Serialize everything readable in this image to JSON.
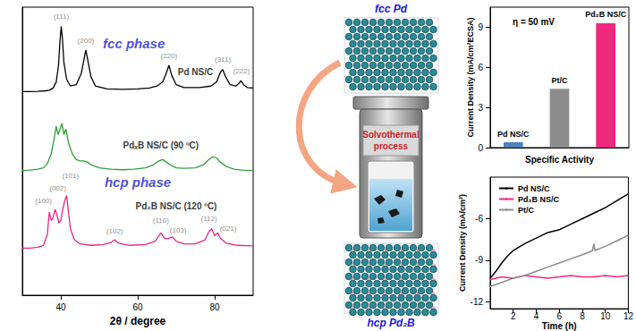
{
  "chart_data": [
    {
      "type": "line",
      "x_label": "2θ / degree",
      "xlim": [
        30,
        90
      ],
      "xticks": [
        40,
        60,
        80
      ],
      "ylim": [
        0,
        104
      ],
      "tick_labels": "x",
      "series": [
        {
          "color": "#000000",
          "x": [
            30,
            32,
            34,
            36,
            37,
            38,
            38.8,
            39.4,
            39.8,
            40.1,
            40.4,
            40.8,
            41.5,
            42.5,
            44,
            45.3,
            46,
            46.5,
            47,
            47.8,
            49,
            52,
            56,
            60,
            63,
            65,
            66.5,
            67.5,
            68.1,
            68.8,
            70,
            72,
            76,
            79,
            80.5,
            81.5,
            82.1,
            82.8,
            84,
            85.5,
            86.3,
            86.8,
            87.5,
            88.5,
            90
          ],
          "values": [
            73.5,
            73.5,
            73.6,
            73.8,
            74,
            74.8,
            77,
            83,
            92,
            97,
            93,
            84,
            78,
            75.5,
            76,
            80,
            85,
            88.5,
            85,
            79,
            75.5,
            74.5,
            74.3,
            74.5,
            74.8,
            75.5,
            77,
            80.5,
            83,
            79.5,
            76,
            75,
            75,
            75.5,
            77,
            80.5,
            81.5,
            79,
            76,
            75.5,
            76.5,
            77.5,
            76,
            75,
            74.8
          ]
        },
        {
          "color": "#2e9e3a",
          "x": [
            30,
            32,
            34,
            35.5,
            36.5,
            37.5,
            38.2,
            38.8,
            39.3,
            39.8,
            40.3,
            40.8,
            41.3,
            42,
            43,
            44,
            45,
            46,
            47,
            48,
            50,
            53,
            56,
            59,
            62,
            64,
            65.5,
            66.5,
            67.5,
            68.5,
            70,
            72,
            75,
            77,
            78.5,
            79.5,
            80.5,
            81.5,
            83,
            85,
            87,
            90
          ],
          "values": [
            45,
            45.2,
            45.5,
            46,
            47.5,
            51,
            56,
            61,
            58,
            60,
            62,
            58,
            60,
            55,
            51,
            49,
            48.5,
            48.5,
            48,
            47,
            46,
            45.5,
            45.3,
            45.5,
            46,
            47,
            48.5,
            49,
            48,
            47,
            46,
            45.8,
            46,
            47,
            49,
            50,
            49.5,
            48,
            46.5,
            45.5,
            45.2,
            45
          ]
        },
        {
          "color": "#e8267f",
          "x": [
            30,
            32,
            34,
            35.5,
            36.5,
            37,
            37.5,
            38,
            38.5,
            39,
            39.5,
            40,
            40.5,
            41,
            41.5,
            42,
            42.5,
            43.5,
            45,
            48,
            51,
            53,
            54,
            55,
            58,
            62,
            64.5,
            66,
            67,
            68,
            69,
            70,
            72,
            75,
            77.5,
            78.5,
            79.2,
            80,
            80.8,
            81.5,
            83,
            86,
            90
          ],
          "values": [
            17,
            17,
            17.3,
            18,
            22,
            30,
            27,
            28,
            31,
            29,
            26,
            27,
            31,
            34,
            36,
            30,
            24,
            20,
            18.5,
            18,
            18.3,
            19,
            20,
            18.8,
            18,
            18.3,
            19.5,
            22.5,
            20.5,
            20.5,
            21,
            19.5,
            18.5,
            18.5,
            20,
            23,
            24,
            21.5,
            22.5,
            20.5,
            18.8,
            18,
            17.8
          ]
        }
      ],
      "peak_labels": [
        {
          "text": "(111)",
          "x": 40.1,
          "y": 100.5
        },
        {
          "text": "(200)",
          "x": 46.5,
          "y": 92
        },
        {
          "text": "(220)",
          "x": 68.1,
          "y": 86.5
        },
        {
          "text": "(311)",
          "x": 82.1,
          "y": 85
        },
        {
          "text": "(222)",
          "x": 87,
          "y": 81
        },
        {
          "text": "(100)",
          "x": 35.5,
          "y": 34
        },
        {
          "text": "(002)",
          "x": 39.2,
          "y": 38.5
        },
        {
          "text": "(101)",
          "x": 42.5,
          "y": 43
        },
        {
          "text": "(102)",
          "x": 54,
          "y": 23
        },
        {
          "text": "(110)",
          "x": 66,
          "y": 27
        },
        {
          "text": "(103)",
          "x": 70.5,
          "y": 23.5
        },
        {
          "text": "(112)",
          "x": 78.5,
          "y": 27.5
        },
        {
          "text": "(021)",
          "x": 83.5,
          "y": 24
        }
      ],
      "phase_labels": [
        {
          "text": "fcc phase",
          "x": 59,
          "y": 91
        },
        {
          "text": "hcp phase",
          "x": 60,
          "y": 41
        }
      ],
      "sample_labels": [
        {
          "text": "Pd NS/C",
          "x": 75,
          "y": 80.5
        },
        {
          "text": "PdₓB NS/C (90 ºC)",
          "x": 66,
          "y": 54
        },
        {
          "text": "Pd₂B NS/C (120 ºC)",
          "x": 70,
          "y": 32
        }
      ]
    },
    {
      "type": "bar",
      "x_label": "Specific Activity",
      "y_label": "Current Density (mA/cm²ECSA)",
      "annotation": "η = 50 mV",
      "categories": [
        "Pd NS/C",
        "Pt/C",
        "Pd₂B NS/C"
      ],
      "values": [
        0.4,
        4.4,
        9.3
      ],
      "colors": [
        "#4f81bd",
        "#8c8c8c",
        "#f0287d"
      ],
      "ylim": [
        0,
        10.5
      ],
      "yticks": [
        0,
        3,
        6,
        9
      ],
      "tick_labels": "y"
    },
    {
      "type": "line",
      "x_label": "Time (h)",
      "y_label": "Current Density (mA/cm²)",
      "xlim": [
        0,
        12
      ],
      "xticks": [
        2,
        4,
        6,
        8,
        10,
        12
      ],
      "ylim": [
        -12.5,
        -3
      ],
      "yticks": [
        -12,
        -9,
        -6
      ],
      "legend": "upper left",
      "series": [
        {
          "name": "Pd NS/C",
          "color": "#000000",
          "x": [
            0,
            0.5,
            1,
            1.5,
            2,
            3,
            4,
            5,
            6,
            7,
            8,
            9,
            10,
            11,
            12
          ],
          "values": [
            -10.3,
            -9.8,
            -9.2,
            -8.7,
            -8.3,
            -7.8,
            -7.4,
            -7.0,
            -6.8,
            -6.4,
            -6.0,
            -5.6,
            -5.2,
            -4.7,
            -4.2
          ]
        },
        {
          "name": "Pd₂B NS/C",
          "color": "#f0287d",
          "x": [
            0,
            1,
            2,
            3,
            4,
            5,
            6,
            7,
            8,
            9,
            10,
            11,
            12
          ],
          "values": [
            -10.4,
            -10.2,
            -10.3,
            -10.1,
            -10.2,
            -10.3,
            -10.2,
            -10.1,
            -10.2,
            -10.2,
            -10.1,
            -10.2,
            -10.1
          ]
        },
        {
          "name": "Pt/C",
          "color": "#8c8c8c",
          "x": [
            0,
            1,
            2,
            3,
            4,
            5,
            6,
            7,
            8,
            8.9,
            9,
            9.1,
            10,
            11,
            12
          ],
          "values": [
            -10.9,
            -10.6,
            -10.3,
            -10.1,
            -9.8,
            -9.5,
            -9.2,
            -8.9,
            -8.6,
            -8.3,
            -7.8,
            -8.3,
            -8.0,
            -7.6,
            -7.2
          ]
        }
      ]
    }
  ],
  "diagram": {
    "top_label": "fcc Pd",
    "process_label": [
      "Solvothermal",
      "process"
    ],
    "bottom_label": "hcp Pd₂B"
  }
}
